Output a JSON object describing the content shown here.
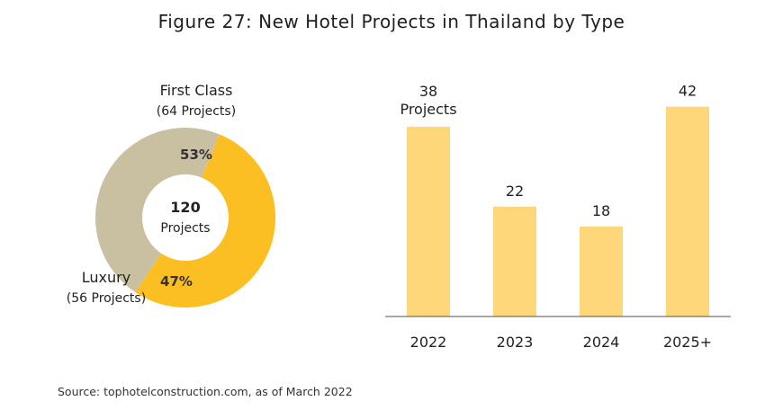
{
  "title": "Figure 27: New Hotel Projects in Thailand by Type",
  "source": "Source: tophotelconstruction.com, as of March 2022",
  "chart_data": [
    {
      "type": "pie",
      "variant": "donut",
      "center_label": {
        "value": "120",
        "unit": "Projects"
      },
      "slices": [
        {
          "name": "First Class",
          "detail": "(64 Projects)",
          "value": 64,
          "percent_label": "53%",
          "color": "#FBBF24"
        },
        {
          "name": "Luxury",
          "detail": "(56 Projects)",
          "value": 56,
          "percent_label": "47%",
          "color": "#C9C0A2"
        }
      ]
    },
    {
      "type": "bar",
      "categories": [
        "2022",
        "2023",
        "2024",
        "2025+"
      ],
      "values": [
        38,
        22,
        18,
        42
      ],
      "data_labels": [
        "38",
        "22",
        "18",
        "42"
      ],
      "first_label_suffix": "Projects",
      "color": "#FDD77A",
      "ylim": [
        0,
        45
      ],
      "grid": false
    }
  ]
}
